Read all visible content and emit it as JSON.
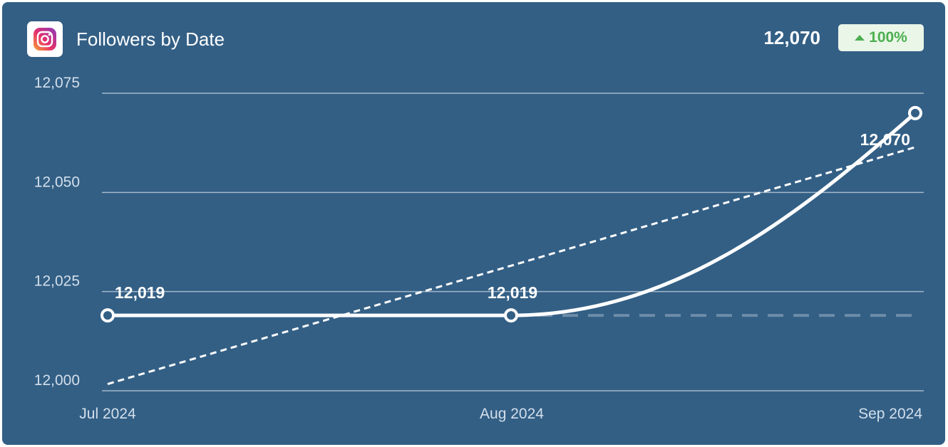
{
  "header": {
    "title": "Followers by Date",
    "total": "12,070",
    "change": "100%"
  },
  "colors": {
    "card_bg": "#335f85",
    "line": "#ffffff",
    "badge_bg": "#eaf6e8",
    "badge_text": "#4caf50"
  },
  "icons": {
    "logo": "instagram-icon",
    "change": "triangle-up-icon"
  },
  "chart_data": {
    "type": "line",
    "title": "Followers by Date",
    "xlabel": "",
    "ylabel": "",
    "categories": [
      "Jul 2024",
      "Aug 2024",
      "Sep 2024"
    ],
    "ylim": [
      12000,
      12075
    ],
    "yticks": [
      12000,
      12025,
      12050,
      12075
    ],
    "ytick_labels": [
      "12,000",
      "12,025",
      "12,050",
      "12,075"
    ],
    "series": [
      {
        "values": [
          12019,
          12019,
          12070
        ],
        "labels": [
          "12,019",
          "12,019",
          "12,070"
        ]
      }
    ],
    "trendline": {
      "start": 12001.7,
      "end": 12061.4
    },
    "baseline": {
      "value": 12019,
      "from_index": 1
    },
    "grid": true,
    "legend": "none"
  }
}
